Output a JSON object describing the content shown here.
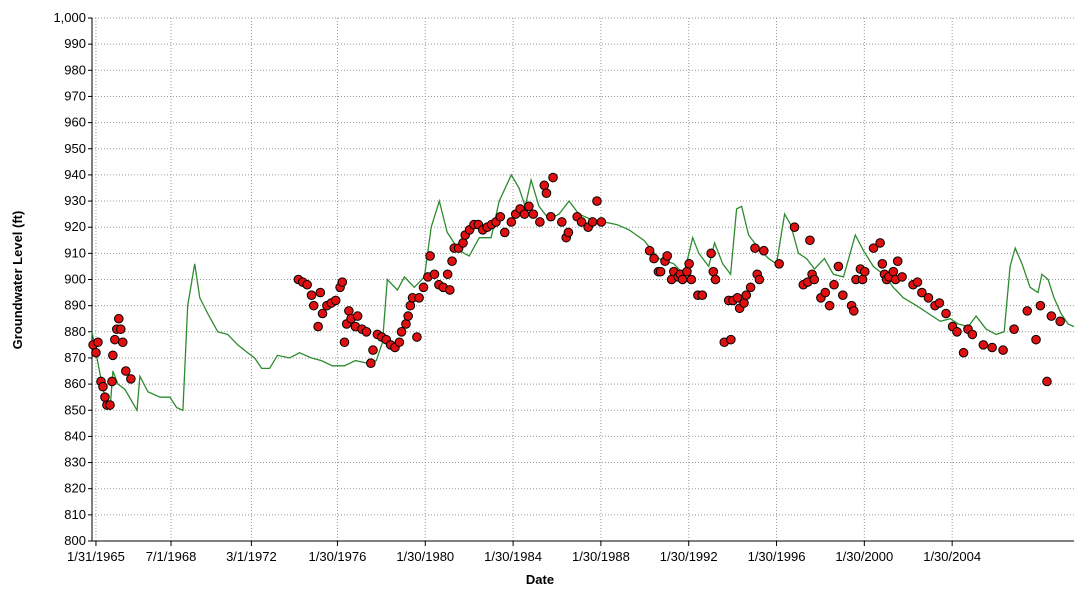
{
  "chart_data": {
    "type": "line",
    "x_label": "Date",
    "y_label": "Groundwater Level (ft)",
    "xlim": [
      1964.9,
      2009.63
    ],
    "ylim": [
      800,
      1000
    ],
    "xticks": [
      {
        "value": 1965.08,
        "label": "1/31/1965"
      },
      {
        "value": 1968.5,
        "label": "7/1/1968"
      },
      {
        "value": 1972.16,
        "label": "3/1/1972"
      },
      {
        "value": 1976.08,
        "label": "1/30/1976"
      },
      {
        "value": 1980.08,
        "label": "1/30/1980"
      },
      {
        "value": 1984.08,
        "label": "1/30/1984"
      },
      {
        "value": 1988.08,
        "label": "1/30/1988"
      },
      {
        "value": 1992.08,
        "label": "1/30/1992"
      },
      {
        "value": 1996.08,
        "label": "1/30/1996"
      },
      {
        "value": 2000.08,
        "label": "1/30/2000"
      },
      {
        "value": 2004.08,
        "label": "1/30/2004"
      }
    ],
    "yticks": [
      800,
      810,
      820,
      830,
      840,
      850,
      860,
      870,
      880,
      890,
      900,
      910,
      920,
      930,
      940,
      950,
      960,
      970,
      980,
      990,
      {
        "value": 1000,
        "label": "1,000"
      }
    ],
    "grid": true,
    "series": [
      {
        "type": "line",
        "color": "#2e8b2e",
        "x": [
          1964.9,
          1965.13,
          1965.4,
          1965.72,
          1965.85,
          1966.08,
          1966.4,
          1966.95,
          1967.08,
          1967.45,
          1968.0,
          1968.45,
          1968.76,
          1969.04,
          1969.26,
          1969.58,
          1969.81,
          1970.17,
          1970.63,
          1971.08,
          1971.54,
          1971.99,
          1972.31,
          1972.63,
          1972.99,
          1973.35,
          1973.9,
          1974.35,
          1974.9,
          1975.35,
          1975.85,
          1976.4,
          1976.9,
          1977.45,
          1977.85,
          1978.13,
          1978.35,
          1978.81,
          1979.13,
          1979.58,
          1980.04,
          1980.35,
          1980.72,
          1981.08,
          1981.63,
          1982.08,
          1982.54,
          1983.08,
          1983.45,
          1984.0,
          1984.35,
          1984.63,
          1984.9,
          1985.26,
          1985.72,
          1986.17,
          1986.63,
          1987.08,
          1987.63,
          1988.22,
          1988.81,
          1989.36,
          1990.04,
          1990.72,
          1991.4,
          1991.86,
          1992.26,
          1992.54,
          1992.99,
          1993.26,
          1993.63,
          1993.99,
          1994.26,
          1994.49,
          1994.81,
          1995.26,
          1995.72,
          1996.08,
          1996.45,
          1996.72,
          1997.08,
          1997.45,
          1997.81,
          1998.26,
          1998.67,
          1999.13,
          1999.67,
          2000.04,
          2000.49,
          2000.95,
          2001.4,
          2001.86,
          2002.45,
          2003.0,
          2003.54,
          2004.0,
          2004.36,
          2004.81,
          2005.17,
          2005.63,
          2006.08,
          2006.45,
          2006.72,
          2006.95,
          2007.26,
          2007.63,
          2007.99,
          2008.17,
          2008.45,
          2008.72,
          2009.04,
          2009.36,
          2009.63
        ],
        "values": [
          880,
          870,
          858,
          850,
          865,
          860,
          858,
          850,
          863,
          857,
          855,
          855,
          851,
          850,
          890,
          906,
          893,
          887,
          880,
          879,
          875,
          872,
          870,
          866,
          866,
          871,
          870,
          872,
          870,
          869,
          867,
          867,
          869,
          868,
          869,
          876,
          900,
          896,
          901,
          897,
          901,
          920,
          930,
          918,
          911,
          909,
          916,
          916,
          930,
          940,
          935,
          928,
          938,
          928,
          923,
          925,
          930,
          925,
          923,
          922,
          921,
          919,
          915,
          908,
          906,
          902,
          916,
          910,
          905,
          914,
          906,
          902,
          927,
          928,
          917,
          912,
          908,
          906,
          925,
          921,
          910,
          908,
          904,
          908,
          902,
          901,
          917,
          911,
          905,
          902,
          897,
          893,
          890,
          887,
          884,
          885,
          883,
          882,
          886,
          881,
          879,
          880,
          905,
          912,
          906,
          897,
          895,
          902,
          900,
          893,
          887,
          883,
          882
        ]
      },
      {
        "type": "scatter",
        "color": "#e01010",
        "x": [
          1964.95,
          1965.08,
          1965.17,
          1965.31,
          1965.4,
          1965.49,
          1965.58,
          1965.72,
          1965.81,
          1965.85,
          1965.94,
          1966.03,
          1966.12,
          1966.21,
          1966.3,
          1966.44,
          1966.67,
          1974.3,
          1974.5,
          1974.7,
          1974.9,
          1975.0,
          1975.2,
          1975.3,
          1975.4,
          1975.6,
          1975.8,
          1976.0,
          1976.2,
          1976.3,
          1976.4,
          1976.5,
          1976.6,
          1976.7,
          1976.9,
          1977.0,
          1977.2,
          1977.4,
          1977.6,
          1977.7,
          1977.9,
          1978.1,
          1978.3,
          1978.5,
          1978.7,
          1978.9,
          1979.0,
          1979.2,
          1979.3,
          1979.4,
          1979.5,
          1979.7,
          1979.8,
          1980.0,
          1980.2,
          1980.3,
          1980.5,
          1980.7,
          1980.9,
          1981.1,
          1981.2,
          1981.3,
          1981.4,
          1981.6,
          1981.8,
          1981.9,
          1982.1,
          1982.3,
          1982.5,
          1982.7,
          1982.9,
          1983.1,
          1983.3,
          1983.5,
          1983.7,
          1984.0,
          1984.2,
          1984.4,
          1984.6,
          1984.8,
          1985.0,
          1985.3,
          1985.5,
          1985.6,
          1985.8,
          1985.9,
          1986.3,
          1986.5,
          1986.6,
          1987.0,
          1987.2,
          1987.5,
          1987.7,
          1987.9,
          1988.1,
          1990.3,
          1990.5,
          1990.7,
          1990.8,
          1991.0,
          1991.1,
          1991.3,
          1991.4,
          1991.6,
          1991.7,
          1991.8,
          1992.0,
          1992.1,
          1992.2,
          1992.5,
          1992.7,
          1993.1,
          1993.2,
          1993.3,
          1993.7,
          1993.9,
          1994.0,
          1994.1,
          1994.3,
          1994.4,
          1994.6,
          1994.7,
          1994.9,
          1995.1,
          1995.2,
          1995.3,
          1995.5,
          1996.2,
          1996.9,
          1997.3,
          1997.5,
          1997.6,
          1997.7,
          1997.8,
          1998.1,
          1998.3,
          1998.5,
          1998.7,
          1998.9,
          1999.1,
          1999.5,
          1999.6,
          1999.7,
          1999.9,
          2000.0,
          2000.1,
          2000.5,
          2000.8,
          2000.9,
          2001.0,
          2001.1,
          2001.2,
          2001.4,
          2001.5,
          2001.6,
          2001.8,
          2002.3,
          2002.5,
          2002.7,
          2003.0,
          2003.3,
          2003.5,
          2003.8,
          2004.1,
          2004.3,
          2004.6,
          2004.8,
          2005.0,
          2005.5,
          2005.9,
          2006.4,
          2006.9,
          2007.5,
          2007.9,
          2008.1,
          2008.4,
          2008.6,
          2009.0
        ],
        "values": [
          875,
          872,
          876,
          861,
          859,
          855,
          852,
          852,
          861,
          871,
          877,
          881,
          885,
          881,
          876,
          865,
          862,
          900,
          899,
          898,
          894,
          890,
          882,
          895,
          887,
          890,
          891,
          892,
          897,
          899,
          876,
          883,
          888,
          885,
          882,
          886,
          881,
          880,
          868,
          873,
          879,
          878,
          877,
          875,
          874,
          876,
          880,
          883,
          886,
          890,
          893,
          878,
          893,
          897,
          901,
          909,
          902,
          898,
          897,
          902,
          896,
          907,
          912,
          912,
          914,
          917,
          919,
          921,
          921,
          919,
          920,
          921,
          922,
          924,
          918,
          922,
          925,
          927,
          925,
          928,
          925,
          922,
          936,
          933,
          924,
          939,
          922,
          916,
          918,
          924,
          922,
          920,
          922,
          930,
          922,
          911,
          908,
          903,
          903,
          907,
          909,
          900,
          903,
          901,
          902,
          900,
          903,
          906,
          900,
          894,
          894,
          910,
          903,
          900,
          876,
          892,
          877,
          892,
          893,
          889,
          891,
          894,
          897,
          912,
          902,
          900,
          911,
          906,
          920,
          898,
          899,
          915,
          902,
          900,
          893,
          895,
          890,
          898,
          905,
          894,
          890,
          888,
          900,
          904,
          900,
          903,
          912,
          914,
          906,
          902,
          900,
          901,
          903,
          900,
          907,
          901,
          898,
          899,
          895,
          893,
          890,
          891,
          887,
          882,
          880,
          872,
          881,
          879,
          875,
          874,
          873,
          881,
          888,
          877,
          890,
          861,
          886,
          884
        ]
      }
    ]
  }
}
